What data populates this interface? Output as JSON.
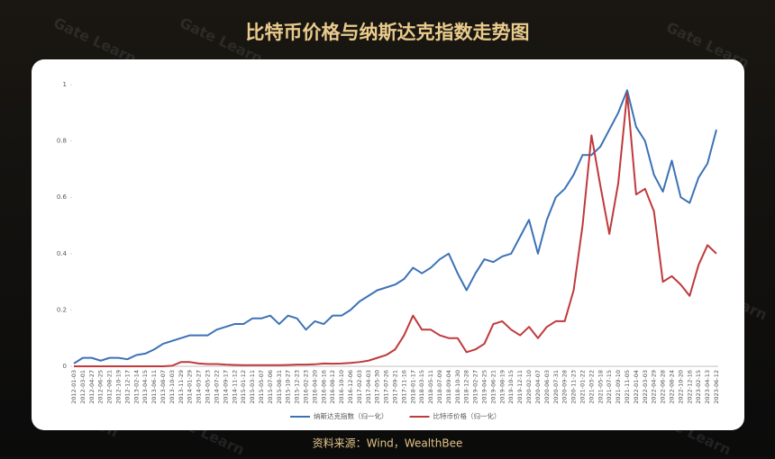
{
  "chart_data": {
    "type": "line",
    "title": "比特币价格与纳斯达克指数走势图",
    "source": "资料来源：Wind，WealthBee",
    "watermark": "Gate Learn",
    "categories": [
      "2012-01-03",
      "2012-03-01",
      "2012-04-27",
      "2012-06-25",
      "2012-08-21",
      "2012-10-19",
      "2012-12-17",
      "2013-02-14",
      "2013-04-15",
      "2013-06-11",
      "2013-08-07",
      "2013-10-03",
      "2013-11-29",
      "2014-01-29",
      "2014-03-27",
      "2014-05-23",
      "2014-07-22",
      "2014-09-17",
      "2014-11-12",
      "2015-01-12",
      "2015-03-11",
      "2015-05-07",
      "2015-07-06",
      "2015-08-31",
      "2015-10-27",
      "2015-12-23",
      "2016-02-23",
      "2016-04-20",
      "2016-06-16",
      "2016-08-12",
      "2016-10-10",
      "2016-12-06",
      "2017-02-03",
      "2017-04-03",
      "2017-05-30",
      "2017-07-26",
      "2017-09-21",
      "2017-11-16",
      "2018-01-17",
      "2018-03-15",
      "2018-05-11",
      "2018-07-09",
      "2018-09-04",
      "2018-10-30",
      "2018-12-28",
      "2019-02-27",
      "2019-04-25",
      "2019-06-21",
      "2019-08-19",
      "2019-10-15",
      "2019-12-11",
      "2020-02-10",
      "2020-04-07",
      "2020-06-03",
      "2020-07-31",
      "2020-09-28",
      "2020-11-23",
      "2021-01-22",
      "2021-03-22",
      "2021-05-18",
      "2021-07-15",
      "2021-09-10",
      "2021-11-05",
      "2022-01-04",
      "2022-03-03",
      "2022-04-29",
      "2022-06-28",
      "2022-08-24",
      "2022-10-20",
      "2022-12-16",
      "2023-02-15",
      "2023-04-13",
      "2023-06-12"
    ],
    "series": [
      {
        "name": "纳斯达克指数（归一化）",
        "color": "#3b72b6",
        "values": [
          0.01,
          0.03,
          0.03,
          0.02,
          0.03,
          0.03,
          0.025,
          0.04,
          0.045,
          0.06,
          0.08,
          0.09,
          0.1,
          0.11,
          0.11,
          0.11,
          0.13,
          0.14,
          0.15,
          0.15,
          0.17,
          0.17,
          0.18,
          0.15,
          0.18,
          0.17,
          0.13,
          0.16,
          0.15,
          0.18,
          0.18,
          0.2,
          0.23,
          0.25,
          0.27,
          0.28,
          0.29,
          0.31,
          0.35,
          0.33,
          0.35,
          0.38,
          0.4,
          0.33,
          0.27,
          0.33,
          0.38,
          0.37,
          0.39,
          0.4,
          0.46,
          0.52,
          0.4,
          0.52,
          0.6,
          0.63,
          0.68,
          0.75,
          0.75,
          0.78,
          0.84,
          0.9,
          0.98,
          0.85,
          0.8,
          0.68,
          0.62,
          0.73,
          0.6,
          0.58,
          0.67,
          0.72,
          0.84
        ]
      },
      {
        "name": "比特币价格（归一化）",
        "color": "#c0393b",
        "values": [
          0,
          0,
          0,
          0,
          0,
          0,
          0,
          0,
          0,
          0,
          0,
          0.002,
          0.015,
          0.015,
          0.01,
          0.008,
          0.008,
          0.006,
          0.005,
          0.004,
          0.004,
          0.004,
          0.004,
          0.004,
          0.005,
          0.006,
          0.006,
          0.007,
          0.01,
          0.009,
          0.01,
          0.012,
          0.015,
          0.02,
          0.03,
          0.04,
          0.06,
          0.11,
          0.18,
          0.13,
          0.13,
          0.11,
          0.1,
          0.1,
          0.05,
          0.06,
          0.08,
          0.15,
          0.16,
          0.13,
          0.11,
          0.14,
          0.1,
          0.14,
          0.16,
          0.16,
          0.27,
          0.5,
          0.82,
          0.64,
          0.47,
          0.65,
          0.97,
          0.61,
          0.63,
          0.55,
          0.3,
          0.32,
          0.29,
          0.25,
          0.36,
          0.43,
          0.4
        ]
      }
    ],
    "ylim": [
      0,
      1
    ],
    "yticks": [
      0,
      0.2,
      0.4,
      0.6,
      0.8,
      1
    ],
    "grid": false,
    "legend": "bottom"
  }
}
